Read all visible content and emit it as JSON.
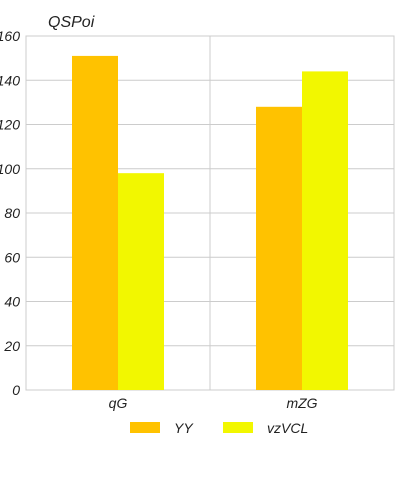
{
  "chart_data": {
    "type": "bar",
    "ylabel": "QSPoi",
    "categories": [
      "qG",
      "mZG"
    ],
    "series": [
      {
        "name": "YY",
        "values": [
          151,
          128
        ],
        "color": "#FFC200"
      },
      {
        "name": "vzVCL",
        "values": [
          98,
          144
        ],
        "color": "#F2F700"
      }
    ],
    "ylim": [
      0,
      160
    ],
    "yticks": [
      0,
      20,
      40,
      60,
      80,
      100,
      120,
      140,
      160
    ],
    "grid": true,
    "legend": "bottom"
  }
}
